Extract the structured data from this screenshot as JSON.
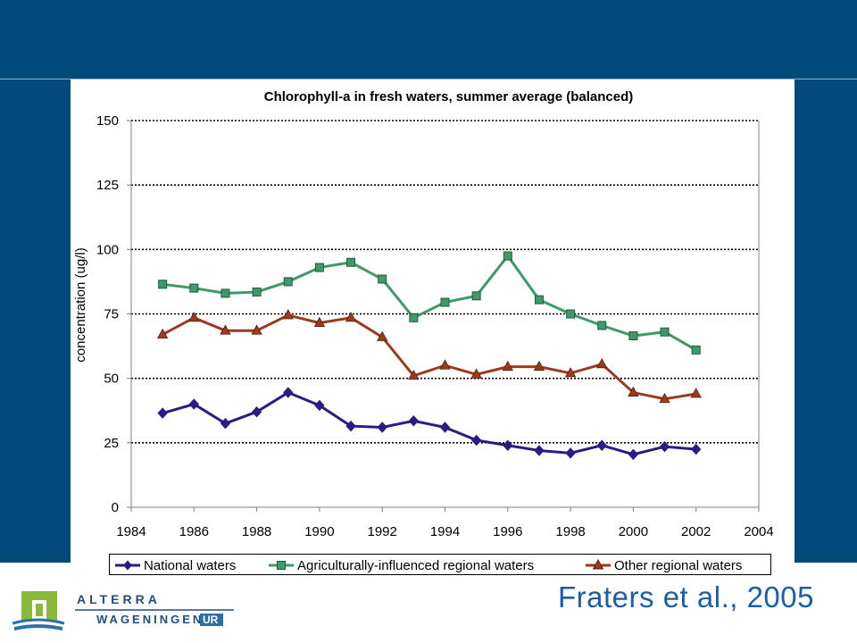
{
  "chart_data": {
    "type": "line",
    "title": "Chlorophyll-a in fresh waters, summer average (balanced)",
    "xlabel": "",
    "ylabel": "concentration (ug/l)",
    "xlim": [
      1984,
      2004
    ],
    "ylim": [
      0,
      150
    ],
    "x_ticks": [
      1984,
      1986,
      1988,
      1990,
      1992,
      1994,
      1996,
      1998,
      2000,
      2002,
      2004
    ],
    "y_ticks": [
      0,
      25,
      50,
      75,
      100,
      125,
      150
    ],
    "grid": "horizontal dotted",
    "legend_position": "bottom",
    "x": [
      1985,
      1986,
      1987,
      1988,
      1989,
      1990,
      1991,
      1992,
      1993,
      1994,
      1995,
      1996,
      1997,
      1998,
      1999,
      2000,
      2001,
      2002
    ],
    "series": [
      {
        "name": "National waters",
        "color": "#2e1a87",
        "marker": "diamond",
        "values": [
          36.5,
          40,
          32.5,
          37,
          44.5,
          39.5,
          31.5,
          31,
          33.5,
          31,
          26,
          24,
          22,
          21,
          24,
          20.5,
          23.5,
          22.5
        ]
      },
      {
        "name": "Agriculturally-influenced regional waters",
        "color": "#3e9a6b",
        "marker": "square",
        "values": [
          86.5,
          85,
          83,
          83.5,
          87.5,
          93,
          95,
          88.5,
          73.5,
          79.5,
          82,
          97.5,
          80.5,
          75,
          70.5,
          66.5,
          68,
          61
        ]
      },
      {
        "name": "Other regional waters",
        "color": "#9c3a1d",
        "marker": "triangle",
        "values": [
          67,
          73.5,
          68.5,
          68.5,
          74.5,
          71.5,
          73.5,
          66,
          51,
          55,
          51.5,
          54.5,
          54.5,
          52,
          55.5,
          44.5,
          42,
          44
        ]
      }
    ]
  },
  "citation": "Fraters et al., 2005",
  "logo": {
    "line1": "ALTERRA",
    "line2": "WAGENINGEN",
    "line2_suffix": "UR"
  },
  "colors": {
    "banner": "#004a7c",
    "citation": "#1a5ea8"
  }
}
